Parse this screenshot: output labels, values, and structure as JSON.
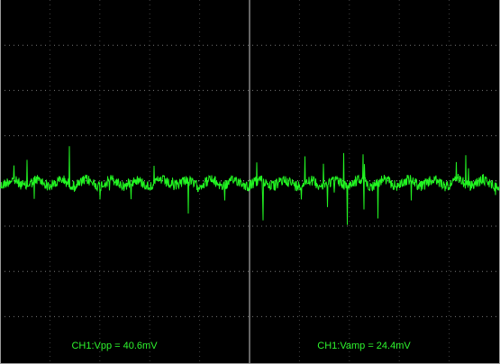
{
  "measurements": [
    "CH1:Vpp = 40.6mV",
    "CH1:Vamp = 24.4mV"
  ]
}
